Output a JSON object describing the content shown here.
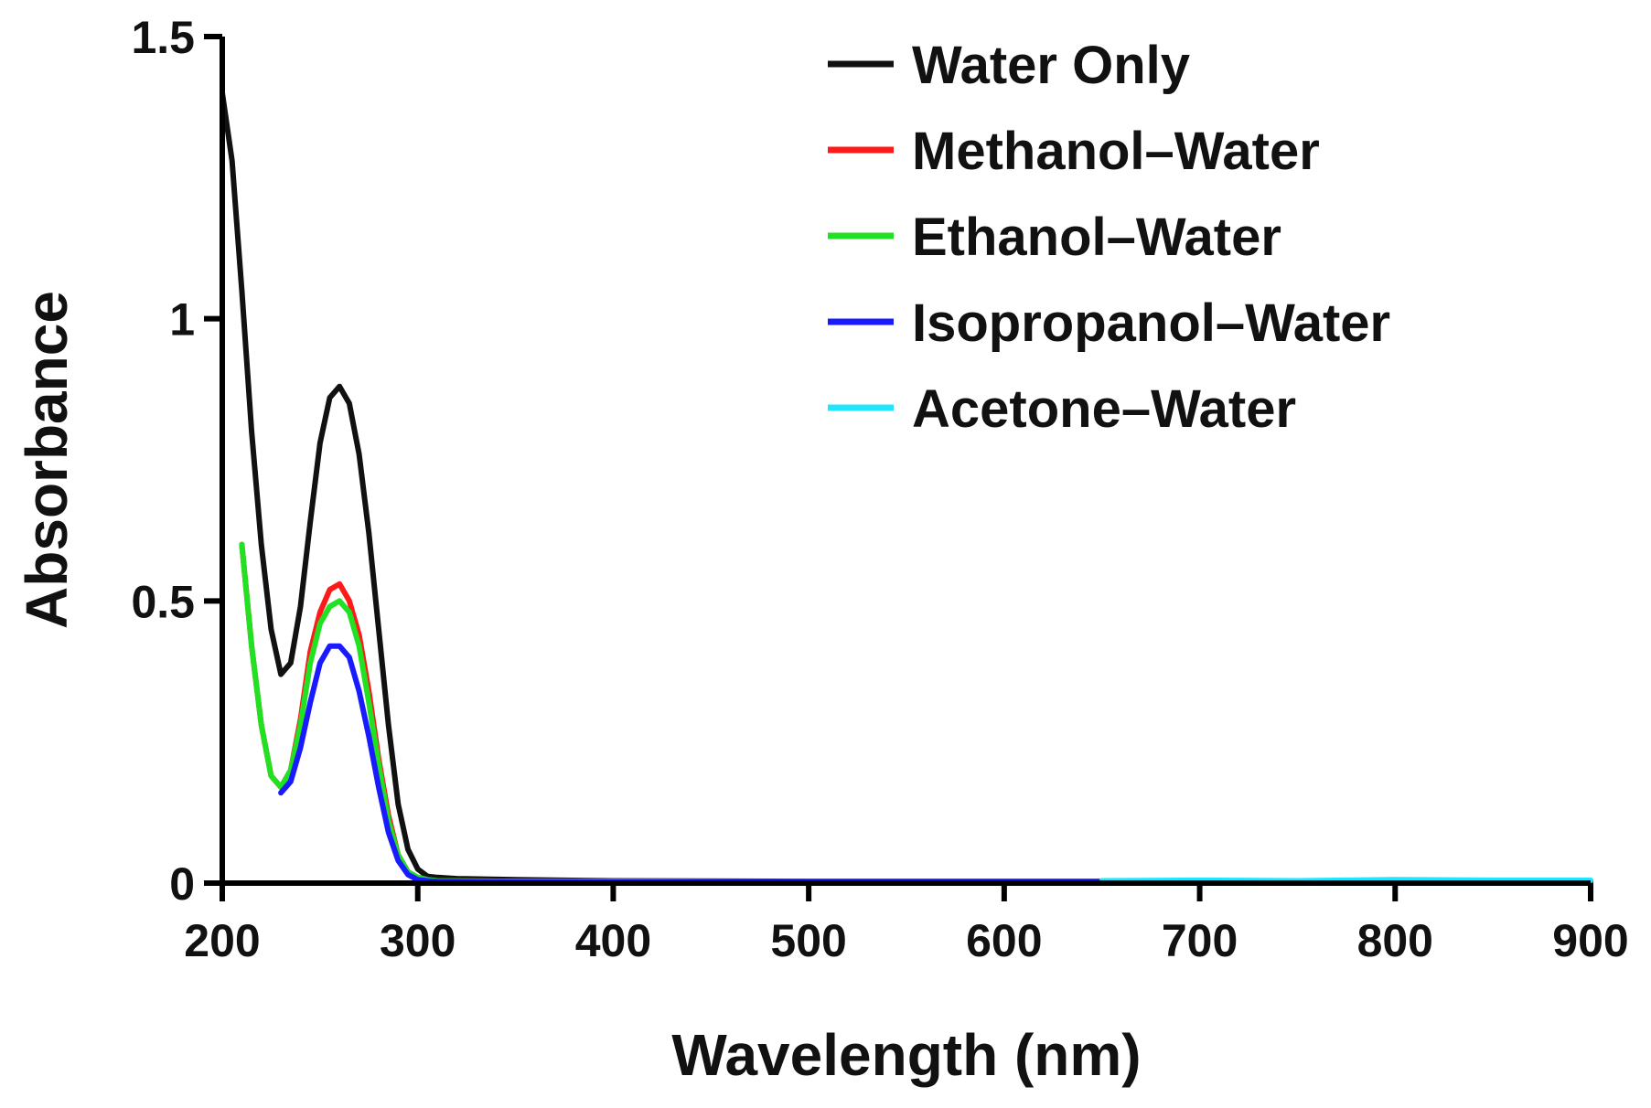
{
  "chart_data": {
    "type": "line",
    "title": "",
    "xlabel": "Wavelength (nm)",
    "ylabel": "Absorbance",
    "xlim": [
      200,
      900
    ],
    "ylim": [
      0,
      1.5
    ],
    "xticks": [
      200,
      300,
      400,
      500,
      600,
      700,
      800,
      900
    ],
    "yticks": [
      0,
      0.5,
      1,
      1.5
    ],
    "xtick_labels": [
      "200",
      "300",
      "400",
      "500",
      "600",
      "700",
      "800",
      "900"
    ],
    "ytick_labels": [
      "0",
      "0.5",
      "1",
      "1.5"
    ],
    "grid": false,
    "legend_position": "top-right",
    "series": [
      {
        "name": "Water Only",
        "color": "#111111",
        "x": [
          200,
          205,
          210,
          215,
          220,
          225,
          230,
          235,
          240,
          245,
          250,
          255,
          260,
          265,
          270,
          275,
          280,
          285,
          290,
          295,
          300,
          305,
          310,
          320,
          350,
          400,
          500,
          600,
          700,
          800,
          900
        ],
        "y": [
          1.4,
          1.28,
          1.05,
          0.8,
          0.6,
          0.45,
          0.37,
          0.39,
          0.49,
          0.64,
          0.78,
          0.86,
          0.88,
          0.85,
          0.76,
          0.62,
          0.45,
          0.28,
          0.14,
          0.06,
          0.025,
          0.012,
          0.01,
          0.008,
          0.006,
          0.004,
          0.003,
          0.003,
          0.003,
          0.003,
          0.003
        ]
      },
      {
        "name": "Methanol–Water",
        "color": "#ff1a1a",
        "x": [
          210,
          215,
          220,
          225,
          230,
          235,
          240,
          245,
          250,
          255,
          260,
          265,
          270,
          275,
          280,
          285,
          290,
          295,
          300,
          305,
          310,
          350,
          400,
          500,
          600,
          700,
          800,
          900
        ],
        "y": [
          0.6,
          0.42,
          0.28,
          0.19,
          0.17,
          0.2,
          0.29,
          0.41,
          0.48,
          0.52,
          0.53,
          0.5,
          0.44,
          0.34,
          0.22,
          0.12,
          0.05,
          0.02,
          0.01,
          0.006,
          0.004,
          0.003,
          0.003,
          0.002,
          0.002,
          0.002,
          0.002,
          0.002
        ]
      },
      {
        "name": "Ethanol–Water",
        "color": "#22e022",
        "x": [
          210,
          215,
          220,
          225,
          230,
          235,
          240,
          245,
          250,
          255,
          260,
          265,
          270,
          275,
          280,
          285,
          290,
          295,
          300,
          305,
          310,
          350,
          400,
          500,
          600,
          700,
          800,
          900
        ],
        "y": [
          0.6,
          0.42,
          0.28,
          0.19,
          0.17,
          0.2,
          0.28,
          0.39,
          0.46,
          0.49,
          0.5,
          0.48,
          0.42,
          0.32,
          0.21,
          0.11,
          0.05,
          0.02,
          0.01,
          0.006,
          0.004,
          0.003,
          0.003,
          0.002,
          0.002,
          0.002,
          0.002,
          0.002
        ]
      },
      {
        "name": "Isopropanol–Water",
        "color": "#1a1aff",
        "x": [
          230,
          235,
          240,
          245,
          250,
          255,
          260,
          265,
          270,
          275,
          280,
          285,
          290,
          295,
          300,
          305,
          310,
          350,
          400,
          500,
          600,
          700,
          800,
          900
        ],
        "y": [
          0.16,
          0.18,
          0.24,
          0.32,
          0.39,
          0.42,
          0.42,
          0.4,
          0.34,
          0.26,
          0.17,
          0.09,
          0.04,
          0.015,
          0.006,
          0.004,
          0.003,
          0.002,
          0.002,
          0.002,
          0.002,
          0.002,
          0.002,
          0.002
        ]
      },
      {
        "name": "Acetone–Water",
        "color": "#22e5ff",
        "x": [
          650,
          700,
          750,
          800,
          850,
          900
        ],
        "y": [
          0.004,
          0.005,
          0.004,
          0.006,
          0.005,
          0.005
        ]
      }
    ]
  }
}
